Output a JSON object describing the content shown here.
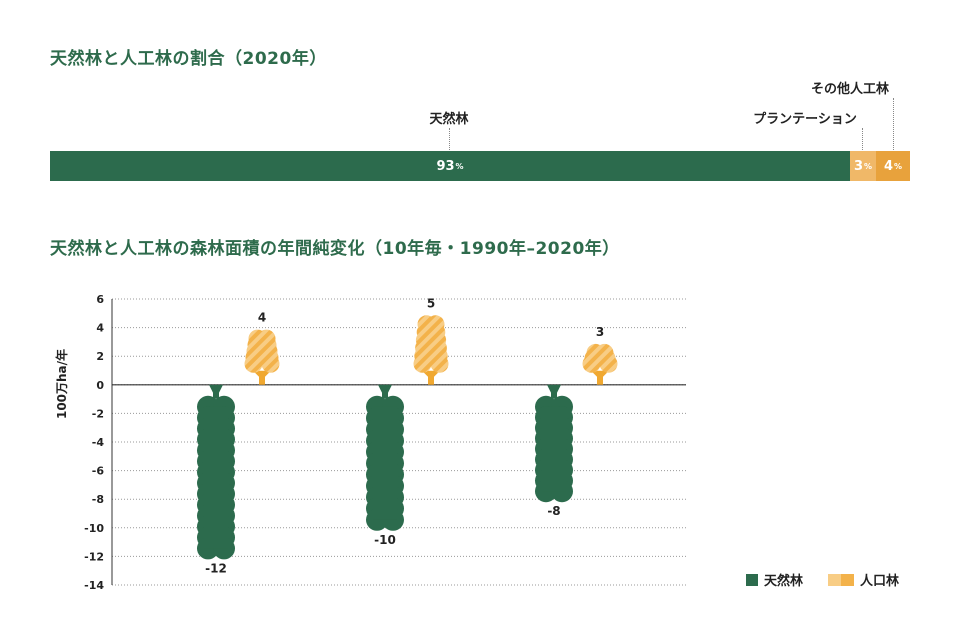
{
  "share_title": "天然林と人工林の割合（2020年）",
  "change_title": "天然林と人工林の森林面積の年間純変化（10年毎・1990年–2020年）",
  "colors": {
    "natural": "#2c6b4d",
    "plantation": "#f0b868",
    "other": "#e8a23c",
    "planted_stripe_a": "#f3b24a",
    "planted_stripe_b": "#f8cd85"
  },
  "share": {
    "segments": [
      {
        "label": "天然林",
        "value": 93,
        "unit": "%"
      },
      {
        "label": "プランテーション",
        "value": 3,
        "unit": "%"
      },
      {
        "label": "その他人工林",
        "value": 4,
        "unit": "%"
      }
    ]
  },
  "chart_data": {
    "type": "bar",
    "ylabel": "100万ha/年",
    "ylim": [
      -14,
      6
    ],
    "yticks": [
      "6",
      "4",
      "2",
      "0",
      "-2",
      "-4",
      "-6",
      "-8",
      "-10",
      "-12",
      "-14"
    ],
    "groups": 3,
    "series": [
      {
        "name": "天然林",
        "values": [
          -12,
          -10,
          -8
        ],
        "labels": [
          "-12",
          "-10",
          "-8"
        ]
      },
      {
        "name": "人口林",
        "values": [
          4,
          5,
          3
        ],
        "labels": [
          "4",
          "5",
          "3"
        ]
      }
    ],
    "legend_position": "bottom-right"
  }
}
